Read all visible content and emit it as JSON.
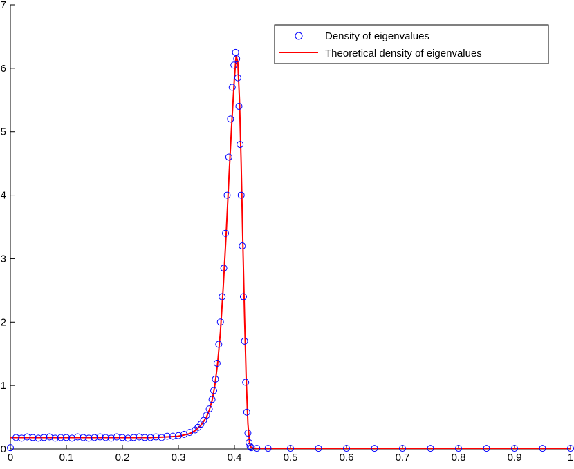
{
  "chart_data": {
    "type": "scatter",
    "title": "",
    "xlabel": "",
    "ylabel": "",
    "xlim": [
      0,
      1
    ],
    "ylim": [
      0,
      7
    ],
    "xticks": [
      0,
      0.1,
      0.2,
      0.3,
      0.4,
      0.5,
      0.6,
      0.7,
      0.8,
      0.9,
      1
    ],
    "xtick_labels": [
      "0",
      "0.1",
      "0.2",
      "0.3",
      "0.4",
      "0.5",
      "0.6",
      "0.7",
      "0.8",
      "0.9",
      "1"
    ],
    "yticks": [
      0,
      1,
      2,
      3,
      4,
      5,
      6,
      7
    ],
    "ytick_labels": [
      "0",
      "1",
      "2",
      "3",
      "4",
      "5",
      "6",
      "7"
    ],
    "grid": false,
    "legend_position": "top-right",
    "series": [
      {
        "name": "Density of eigenvalues",
        "kind": "markers",
        "marker": "circle-open",
        "color": "#0000ff",
        "x": [
          0,
          0.01,
          0.02,
          0.03,
          0.04,
          0.05,
          0.06,
          0.07,
          0.08,
          0.09,
          0.1,
          0.11,
          0.12,
          0.13,
          0.14,
          0.15,
          0.16,
          0.17,
          0.18,
          0.19,
          0.2,
          0.21,
          0.22,
          0.23,
          0.24,
          0.25,
          0.26,
          0.27,
          0.28,
          0.29,
          0.3,
          0.31,
          0.32,
          0.33,
          0.335,
          0.34,
          0.345,
          0.35,
          0.355,
          0.36,
          0.363,
          0.366,
          0.369,
          0.372,
          0.375,
          0.378,
          0.381,
          0.384,
          0.387,
          0.39,
          0.393,
          0.396,
          0.399,
          0.402,
          0.404,
          0.406,
          0.408,
          0.41,
          0.412,
          0.414,
          0.416,
          0.418,
          0.42,
          0.422,
          0.424,
          0.426,
          0.428,
          0.43,
          0.44,
          0.46,
          0.5,
          0.55,
          0.6,
          0.65,
          0.7,
          0.75,
          0.8,
          0.85,
          0.9,
          0.95,
          1
        ],
        "y": [
          0.02,
          0.18,
          0.17,
          0.19,
          0.18,
          0.17,
          0.18,
          0.19,
          0.17,
          0.18,
          0.18,
          0.17,
          0.19,
          0.18,
          0.17,
          0.18,
          0.19,
          0.18,
          0.17,
          0.19,
          0.18,
          0.17,
          0.18,
          0.19,
          0.18,
          0.18,
          0.19,
          0.18,
          0.2,
          0.2,
          0.21,
          0.23,
          0.26,
          0.3,
          0.34,
          0.39,
          0.45,
          0.53,
          0.63,
          0.78,
          0.92,
          1.1,
          1.35,
          1.65,
          2.0,
          2.4,
          2.85,
          3.4,
          4.0,
          4.6,
          5.2,
          5.7,
          6.05,
          6.25,
          6.15,
          5.85,
          5.4,
          4.8,
          4.0,
          3.2,
          2.4,
          1.7,
          1.05,
          0.58,
          0.25,
          0.1,
          0.04,
          0.02,
          0.01,
          0.01,
          0.01,
          0.01,
          0.01,
          0.01,
          0.01,
          0.01,
          0.01,
          0.01,
          0.01,
          0.01,
          0.01
        ]
      },
      {
        "name": "Theoretical density of eigenvalues",
        "kind": "line",
        "color": "#ff0000",
        "x": [
          0,
          0.05,
          0.1,
          0.15,
          0.2,
          0.25,
          0.28,
          0.3,
          0.32,
          0.33,
          0.34,
          0.35,
          0.355,
          0.36,
          0.365,
          0.37,
          0.375,
          0.38,
          0.385,
          0.39,
          0.395,
          0.4,
          0.403,
          0.406,
          0.409,
          0.412,
          0.415,
          0.418,
          0.421,
          0.424,
          0.427,
          0.43,
          0.44,
          0.5,
          0.6,
          0.7,
          0.8,
          0.9,
          1
        ],
        "y": [
          0.18,
          0.18,
          0.18,
          0.18,
          0.18,
          0.18,
          0.19,
          0.2,
          0.24,
          0.29,
          0.37,
          0.5,
          0.61,
          0.76,
          1.0,
          1.35,
          1.85,
          2.55,
          3.35,
          4.25,
          5.1,
          5.85,
          6.2,
          6.1,
          5.5,
          4.5,
          3.25,
          2.1,
          1.1,
          0.4,
          0.09,
          0.02,
          0.01,
          0.01,
          0.01,
          0.01,
          0.01,
          0.01,
          0.01
        ]
      }
    ]
  }
}
